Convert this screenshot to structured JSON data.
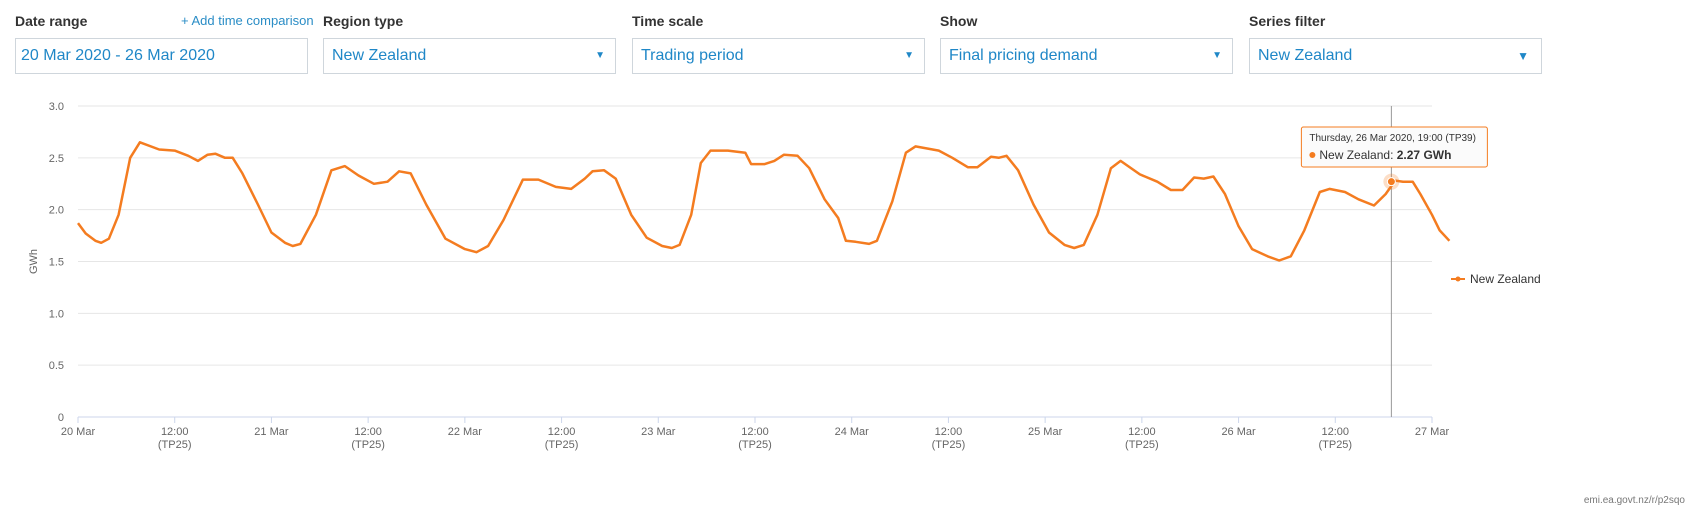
{
  "controls": {
    "date_range": {
      "label": "Date range",
      "value": "20 Mar 2020 - 26 Mar 2020",
      "add_comparison": "+ Add time comparison"
    },
    "region_type": {
      "label": "Region type",
      "value": "New Zealand"
    },
    "time_scale": {
      "label": "Time scale",
      "value": "Trading period"
    },
    "show": {
      "label": "Show",
      "value": "Final pricing demand"
    },
    "series_filter": {
      "label": "Series filter",
      "value": "New Zealand"
    }
  },
  "colors": {
    "series": "#f47c20",
    "accent": "#1f87c7",
    "grid": "#e6e6e6"
  },
  "chart_data": {
    "type": "line",
    "ylabel": "GWh",
    "ylim": [
      0,
      3.0
    ],
    "yticks": [
      "0",
      "0.5",
      "1.0",
      "1.5",
      "2.0",
      "2.5",
      "3.0"
    ],
    "xlim_days": [
      "20 Mar",
      "27 Mar"
    ],
    "xticks": [
      {
        "day": 0,
        "label": "20 Mar",
        "sub": ""
      },
      {
        "day": 0.5,
        "label": "12:00",
        "sub": "(TP25)"
      },
      {
        "day": 1,
        "label": "21 Mar",
        "sub": ""
      },
      {
        "day": 1.5,
        "label": "12:00",
        "sub": "(TP25)"
      },
      {
        "day": 2,
        "label": "22 Mar",
        "sub": ""
      },
      {
        "day": 2.5,
        "label": "12:00",
        "sub": "(TP25)"
      },
      {
        "day": 3,
        "label": "23 Mar",
        "sub": ""
      },
      {
        "day": 3.5,
        "label": "12:00",
        "sub": "(TP25)"
      },
      {
        "day": 4,
        "label": "24 Mar",
        "sub": ""
      },
      {
        "day": 4.5,
        "label": "12:00",
        "sub": "(TP25)"
      },
      {
        "day": 5,
        "label": "25 Mar",
        "sub": ""
      },
      {
        "day": 5.5,
        "label": "12:00",
        "sub": "(TP25)"
      },
      {
        "day": 6,
        "label": "26 Mar",
        "sub": ""
      },
      {
        "day": 6.5,
        "label": "12:00",
        "sub": "(TP25)"
      },
      {
        "day": 7,
        "label": "27 Mar",
        "sub": ""
      }
    ],
    "series": [
      {
        "name": "New Zealand",
        "points": [
          [
            0.0,
            1.87
          ],
          [
            0.04,
            1.77
          ],
          [
            0.09,
            1.7
          ],
          [
            0.12,
            1.68
          ],
          [
            0.16,
            1.72
          ],
          [
            0.21,
            1.95
          ],
          [
            0.27,
            2.5
          ],
          [
            0.32,
            2.65
          ],
          [
            0.42,
            2.58
          ],
          [
            0.5,
            2.57
          ],
          [
            0.57,
            2.52
          ],
          [
            0.62,
            2.47
          ],
          [
            0.67,
            2.53
          ],
          [
            0.71,
            2.54
          ],
          [
            0.76,
            2.5
          ],
          [
            0.8,
            2.5
          ],
          [
            0.85,
            2.35
          ],
          [
            0.93,
            2.05
          ],
          [
            1.0,
            1.78
          ],
          [
            1.07,
            1.68
          ],
          [
            1.11,
            1.65
          ],
          [
            1.15,
            1.67
          ],
          [
            1.23,
            1.95
          ],
          [
            1.31,
            2.38
          ],
          [
            1.38,
            2.42
          ],
          [
            1.45,
            2.33
          ],
          [
            1.53,
            2.25
          ],
          [
            1.6,
            2.27
          ],
          [
            1.66,
            2.37
          ],
          [
            1.72,
            2.35
          ],
          [
            1.8,
            2.05
          ],
          [
            1.9,
            1.72
          ],
          [
            2.0,
            1.62
          ],
          [
            2.06,
            1.59
          ],
          [
            2.12,
            1.65
          ],
          [
            2.2,
            1.9
          ],
          [
            2.3,
            2.29
          ],
          [
            2.38,
            2.29
          ],
          [
            2.47,
            2.22
          ],
          [
            2.55,
            2.2
          ],
          [
            2.62,
            2.3
          ],
          [
            2.66,
            2.37
          ],
          [
            2.72,
            2.38
          ],
          [
            2.78,
            2.3
          ],
          [
            2.86,
            1.95
          ],
          [
            2.94,
            1.73
          ],
          [
            3.02,
            1.65
          ],
          [
            3.07,
            1.63
          ],
          [
            3.11,
            1.66
          ],
          [
            3.17,
            1.95
          ],
          [
            3.22,
            2.45
          ],
          [
            3.27,
            2.57
          ],
          [
            3.36,
            2.57
          ],
          [
            3.45,
            2.55
          ],
          [
            3.48,
            2.44
          ],
          [
            3.55,
            2.44
          ],
          [
            3.6,
            2.47
          ],
          [
            3.65,
            2.53
          ],
          [
            3.72,
            2.52
          ],
          [
            3.78,
            2.4
          ],
          [
            3.86,
            2.1
          ],
          [
            3.93,
            1.92
          ],
          [
            3.97,
            1.7
          ],
          [
            4.02,
            1.69
          ],
          [
            4.09,
            1.67
          ],
          [
            4.13,
            1.7
          ],
          [
            4.21,
            2.08
          ],
          [
            4.28,
            2.55
          ],
          [
            4.33,
            2.61
          ],
          [
            4.45,
            2.57
          ],
          [
            4.52,
            2.5
          ],
          [
            4.6,
            2.41
          ],
          [
            4.65,
            2.41
          ],
          [
            4.72,
            2.51
          ],
          [
            4.76,
            2.5
          ],
          [
            4.8,
            2.52
          ],
          [
            4.86,
            2.38
          ],
          [
            4.94,
            2.05
          ],
          [
            5.02,
            1.78
          ],
          [
            5.1,
            1.66
          ],
          [
            5.15,
            1.63
          ],
          [
            5.2,
            1.66
          ],
          [
            5.27,
            1.95
          ],
          [
            5.34,
            2.4
          ],
          [
            5.39,
            2.47
          ],
          [
            5.49,
            2.34
          ],
          [
            5.58,
            2.27
          ],
          [
            5.65,
            2.19
          ],
          [
            5.71,
            2.19
          ],
          [
            5.77,
            2.31
          ],
          [
            5.82,
            2.3
          ],
          [
            5.87,
            2.32
          ],
          [
            5.93,
            2.15
          ],
          [
            6.0,
            1.84
          ],
          [
            6.07,
            1.62
          ],
          [
            6.15,
            1.55
          ],
          [
            6.21,
            1.51
          ],
          [
            6.27,
            1.55
          ],
          [
            6.34,
            1.8
          ],
          [
            6.42,
            2.17
          ],
          [
            6.47,
            2.2
          ],
          [
            6.55,
            2.17
          ],
          [
            6.62,
            2.1
          ],
          [
            6.7,
            2.04
          ],
          [
            6.76,
            2.15
          ],
          [
            6.81,
            2.28
          ],
          [
            6.85,
            2.27
          ],
          [
            6.9,
            2.27
          ],
          [
            6.94,
            2.15
          ],
          [
            7.0,
            1.95
          ],
          [
            7.04,
            1.8
          ],
          [
            7.09,
            1.7
          ]
        ]
      }
    ],
    "legend": {
      "position": "right",
      "label": "New Zealand"
    },
    "tooltip": {
      "header": "Thursday, 26 Mar 2020, 19:00 (TP39)",
      "series_label": "New Zealand:",
      "value_text": "2.27 GWh",
      "day": 6.79,
      "value": 2.27
    },
    "source": "emi.ea.govt.nz/r/p2sqo"
  }
}
